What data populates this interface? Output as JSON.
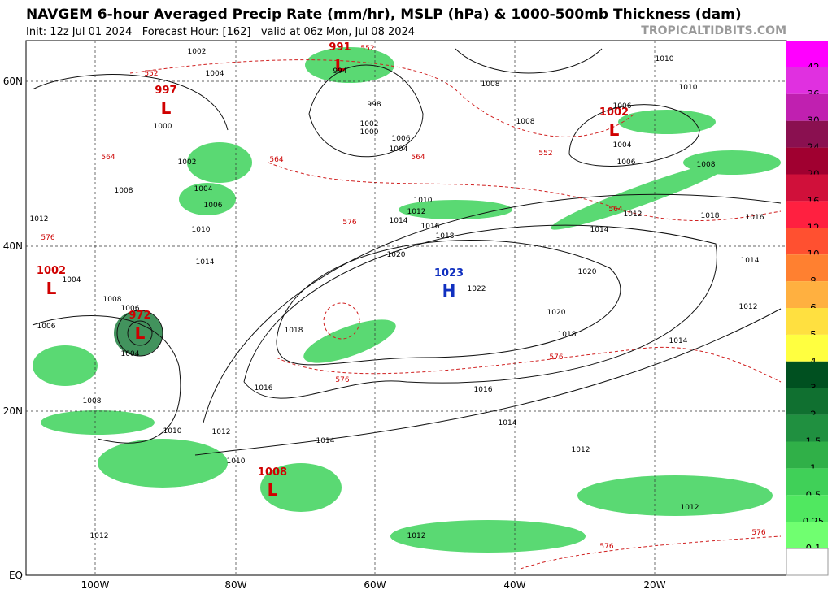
{
  "header": {
    "title": "NAVGEM 6-hour Averaged Precip Rate (mm/hr), MSLP (hPa) & 1000-500mb Thickness (dam)",
    "subtitle": "Init: 12z Jul 01 2024   Forecast Hour: [162]   valid at 06z Mon, Jul 08 2024",
    "watermark": "TROPICALTIDBITS.COM"
  },
  "map": {
    "lat_labels": [
      "60N",
      "40N",
      "20N",
      "EQ"
    ],
    "lon_labels": [
      "100W",
      "80W",
      "60W",
      "40W",
      "20W"
    ],
    "centers": [
      {
        "value": "997",
        "letter": "L",
        "color": "#d00000"
      },
      {
        "value": "1002",
        "letter": "L",
        "color": "#d00000"
      },
      {
        "value": "972",
        "letter": "L",
        "color": "#d00000"
      },
      {
        "value": "1008",
        "letter": "L",
        "color": "#d00000"
      },
      {
        "value": "1023",
        "letter": "H",
        "color": "#1030c0"
      },
      {
        "value": "1002",
        "letter": "L",
        "color": "#d00000"
      },
      {
        "value": "991",
        "letter": "L",
        "color": "#d00000"
      }
    ],
    "isobar_labels": [
      "1002",
      "1004",
      "1008",
      "1012",
      "1004",
      "1008",
      "1006",
      "1004",
      "1006",
      "1008",
      "1010",
      "1012",
      "1010",
      "1012",
      "1014",
      "1016",
      "1018",
      "1020",
      "1022",
      "1020",
      "1018",
      "1016",
      "1014",
      "1014",
      "1012",
      "1012",
      "1012",
      "1012",
      "1014",
      "1014",
      "1016",
      "1018",
      "1020",
      "1014",
      "1012",
      "1008",
      "1004",
      "1006",
      "1008",
      "1008",
      "1010",
      "1010",
      "1006",
      "1018",
      "1016",
      "1014",
      "1012",
      "1010",
      "1006",
      "1004",
      "1002",
      "1000",
      "998",
      "994",
      "1000",
      "1002",
      "1004",
      "1006",
      "1010"
    ],
    "thickness_labels": [
      "552",
      "564",
      "576",
      "564",
      "552",
      "564",
      "576",
      "576",
      "552",
      "564",
      "576",
      "576",
      "576"
    ]
  },
  "colorbar": {
    "levels": [
      {
        "label": "42",
        "color": "#ff00ff"
      },
      {
        "label": "36",
        "color": "#e030e0"
      },
      {
        "label": "30",
        "color": "#c020b0"
      },
      {
        "label": "24",
        "color": "#8a1050"
      },
      {
        "label": "20",
        "color": "#a00030"
      },
      {
        "label": "16",
        "color": "#d0103a"
      },
      {
        "label": "12",
        "color": "#ff2040"
      },
      {
        "label": "10",
        "color": "#ff5030"
      },
      {
        "label": "8",
        "color": "#ff8030"
      },
      {
        "label": "6",
        "color": "#ffb040"
      },
      {
        "label": "5",
        "color": "#ffe040"
      },
      {
        "label": "4",
        "color": "#ffff40"
      },
      {
        "label": "3",
        "color": "#005020"
      },
      {
        "label": "2",
        "color": "#107030"
      },
      {
        "label": "1.5",
        "color": "#209040"
      },
      {
        "label": "1",
        "color": "#30b048"
      },
      {
        "label": "0.5",
        "color": "#40d058"
      },
      {
        "label": "0.25",
        "color": "#50e860"
      },
      {
        "label": "0.1",
        "color": "#70ff70"
      }
    ],
    "below_color": "#ffffff"
  }
}
